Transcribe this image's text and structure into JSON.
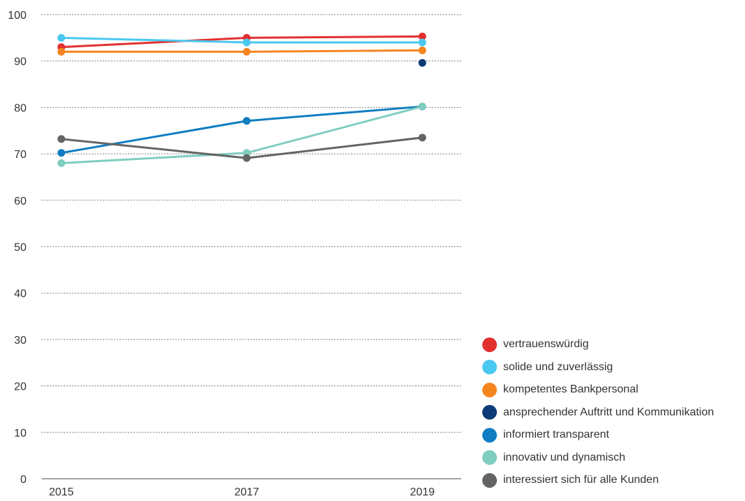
{
  "chart_data": {
    "type": "line",
    "title": "",
    "xlabel": "",
    "ylabel": "",
    "x": [
      "2015",
      "2017",
      "2019"
    ],
    "ylim": [
      0,
      100
    ],
    "yticks": [
      0,
      10,
      20,
      30,
      40,
      50,
      60,
      70,
      80,
      90,
      100
    ],
    "grid": "horizontal dotted",
    "legend_position": "bottom-right",
    "series": [
      {
        "name": "vertrauenswürdig",
        "color": "#e2302f",
        "values": [
          93,
          95,
          95.3
        ]
      },
      {
        "name": "solide und zuverlässig",
        "color": "#4bc8f0",
        "values": [
          95,
          94,
          94
        ]
      },
      {
        "name": "kompetentes Bankpersonal",
        "color": "#f5851f",
        "values": [
          92,
          92,
          92.3
        ]
      },
      {
        "name": "ansprechender Auftritt und Kommunikation",
        "color": "#0d3b78",
        "values": [
          null,
          null,
          89.6
        ]
      },
      {
        "name": "informiert transparent",
        "color": "#0f7dc2",
        "values": [
          70.2,
          77.1,
          80.2
        ]
      },
      {
        "name": "innovativ und dynamisch",
        "color": "#7fcdbf",
        "values": [
          68,
          70.2,
          80.2
        ]
      },
      {
        "name": "interessiert sich für alle Kunden",
        "color": "#646464",
        "values": [
          73.2,
          69.1,
          73.5
        ]
      }
    ]
  }
}
